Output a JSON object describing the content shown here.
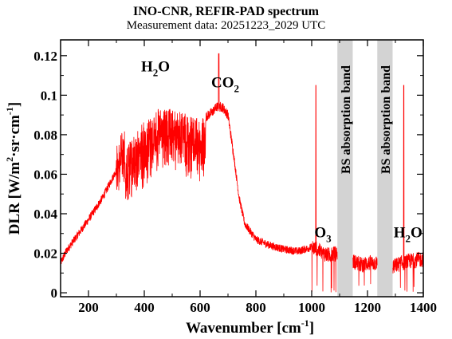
{
  "title": "INO-CNR, REFIR-PAD spectrum",
  "subtitle": "Measurement data: 20251223_2029 UTC",
  "chart_data": {
    "type": "line",
    "title": "INO-CNR, REFIR-PAD spectrum",
    "subtitle": "Measurement data: 20251223_2029 UTC",
    "xlabel": {
      "main": "Wavenumber [cm",
      "sup": "-1",
      "end": "]"
    },
    "ylabel": {
      "a": "DLR [W/m",
      "sup1": "2",
      "b": "·sr·cm",
      "sup2": "-1",
      "c": "]"
    },
    "xlim": [
      100,
      1400
    ],
    "ylim": [
      -0.002,
      0.128
    ],
    "xticks": [
      200,
      400,
      600,
      800,
      1000,
      1200,
      1400
    ],
    "xtick_labels": [
      "200",
      "400",
      "600",
      "800",
      "1000",
      "1200",
      "1400"
    ],
    "yticks": [
      0,
      0.02,
      0.04,
      0.06,
      0.08,
      0.1,
      0.12
    ],
    "ytick_labels": [
      "0",
      "0.02",
      "0.04",
      "0.06",
      "0.08",
      "0.1",
      "0.12"
    ],
    "grid": false,
    "line_color": "#ff0000",
    "band_color": "#d3d3d3",
    "bands": [
      {
        "x": [
          1092,
          1147
        ],
        "label": "BS absorption band"
      },
      {
        "x": [
          1235,
          1290
        ],
        "label": "BS absorption band"
      }
    ],
    "annotations": [
      {
        "base": "H",
        "sub": "2",
        "rest": "O",
        "x": 440,
        "y": 0.112
      },
      {
        "base": "CO",
        "sub": "2",
        "rest": "",
        "x": 690,
        "y": 0.104
      },
      {
        "base": "O",
        "sub": "3",
        "rest": "",
        "x": 1040,
        "y": 0.028
      },
      {
        "base": "H",
        "sub": "2",
        "rest": "O",
        "x": 1345,
        "y": 0.028
      }
    ],
    "envelope": {
      "x": [
        100,
        120,
        150,
        200,
        250,
        300,
        350,
        400,
        450,
        500,
        550,
        600,
        620,
        640,
        660,
        680,
        700,
        720,
        740,
        760,
        800,
        850,
        900,
        950,
        1000,
        1020,
        1040,
        1060,
        1092,
        1147,
        1180,
        1200,
        1235,
        1290,
        1320,
        1350,
        1400
      ],
      "y": [
        0.015,
        0.021,
        0.027,
        0.037,
        0.048,
        0.062,
        0.077,
        0.087,
        0.093,
        0.093,
        0.091,
        0.088,
        0.089,
        0.091,
        0.094,
        0.094,
        0.09,
        0.07,
        0.048,
        0.035,
        0.027,
        0.024,
        0.022,
        0.021,
        0.023,
        0.022,
        0.02,
        0.019,
        0.02,
        0.016,
        0.014,
        0.015,
        0.015,
        0.013,
        0.015,
        0.016,
        0.017
      ]
    }
  }
}
